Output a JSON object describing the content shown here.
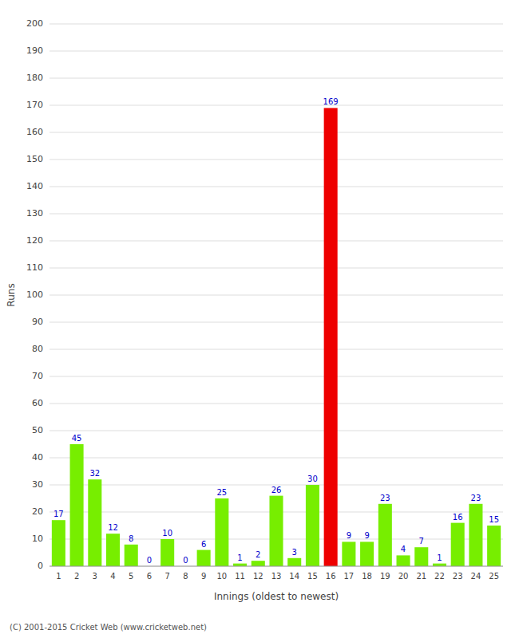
{
  "chart_data": {
    "type": "bar",
    "categories": [
      "1",
      "2",
      "3",
      "4",
      "5",
      "6",
      "7",
      "8",
      "9",
      "10",
      "11",
      "12",
      "13",
      "14",
      "15",
      "16",
      "17",
      "18",
      "19",
      "20",
      "21",
      "22",
      "23",
      "24",
      "25"
    ],
    "values": [
      17,
      45,
      32,
      12,
      8,
      0,
      10,
      0,
      6,
      25,
      1,
      2,
      26,
      3,
      30,
      169,
      9,
      9,
      23,
      4,
      7,
      1,
      16,
      23,
      15
    ],
    "colors": [
      "#77ee00",
      "#77ee00",
      "#77ee00",
      "#77ee00",
      "#77ee00",
      "#77ee00",
      "#77ee00",
      "#77ee00",
      "#77ee00",
      "#77ee00",
      "#77ee00",
      "#77ee00",
      "#77ee00",
      "#77ee00",
      "#77ee00",
      "#ee0000",
      "#77ee00",
      "#77ee00",
      "#77ee00",
      "#77ee00",
      "#77ee00",
      "#77ee00",
      "#77ee00",
      "#77ee00",
      "#77ee00"
    ],
    "ylabel": "Runs",
    "xlabel": "Innings (oldest to newest)",
    "ylim": [
      0,
      200
    ],
    "yticks": [
      0,
      10,
      20,
      30,
      40,
      50,
      60,
      70,
      80,
      90,
      100,
      110,
      120,
      130,
      140,
      150,
      160,
      170,
      180,
      190,
      200
    ],
    "grid": true,
    "data_labels": true,
    "annotations": [
      "(C) 2001-2015 Cricket Web (www.cricketweb.net)"
    ]
  }
}
